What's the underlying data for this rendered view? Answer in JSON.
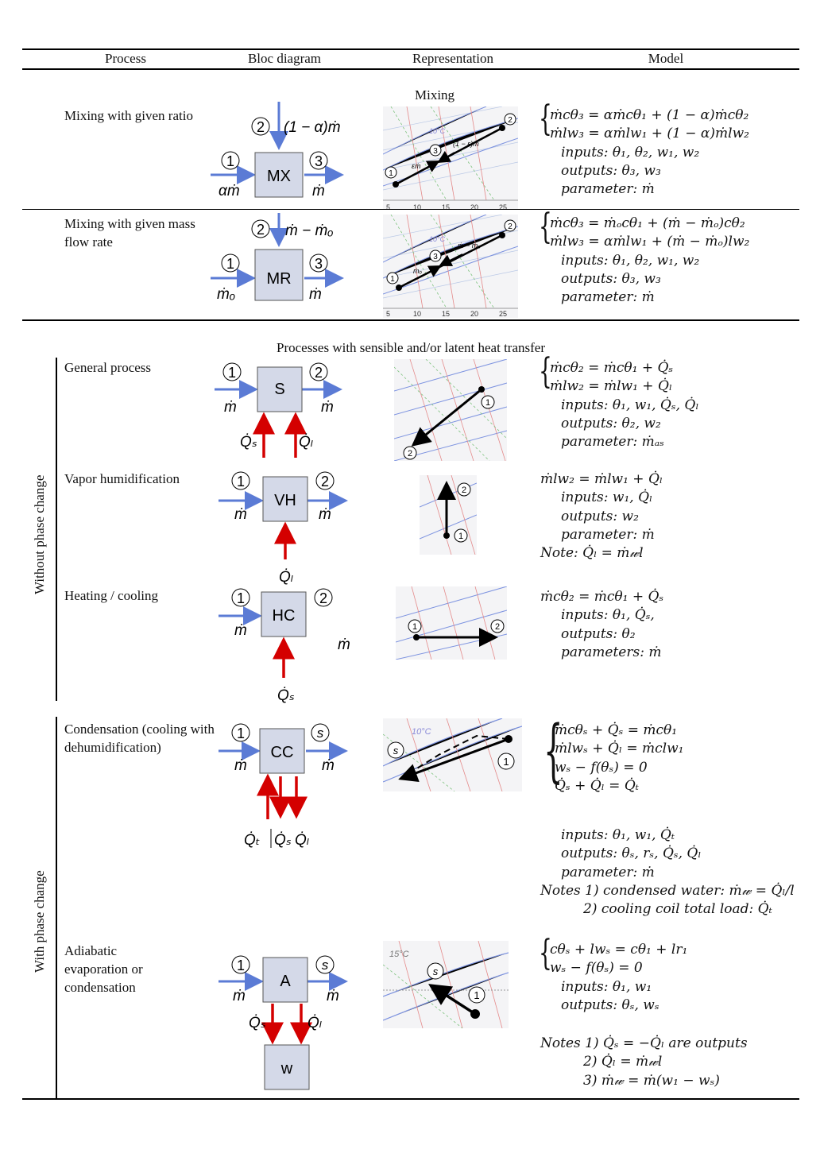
{
  "header": {
    "process": "Process",
    "bloc": "Bloc diagram",
    "representation": "Representation",
    "model": "Model"
  },
  "mixing_title": "Mixing",
  "sensible_title": "Processes with sensible and/or latent heat transfer",
  "groups": {
    "without": "Without phase change",
    "with": "With phase change"
  },
  "rows": {
    "mx": {
      "process": "Mixing with given ratio",
      "block": "MX",
      "in1": "1",
      "in2": "2",
      "out": "3",
      "flow1": "αṁ",
      "flow2": "(1 − α)ṁ",
      "flow_out": "ṁ",
      "chart_labels": {
        "p1": "1",
        "p2": "2",
        "p3": "3",
        "seg1": "εṁ",
        "seg2": "(1 − ε)ṁ",
        "iso": "10°C"
      },
      "chart_ticks": [
        "5",
        "10",
        "15",
        "20",
        "25"
      ],
      "model": [
        "ṁcθ₃ = αṁcθ₁ + (1 − α)ṁcθ₂",
        "ṁlw₃ = αṁlw₁ + (1 − α)ṁlw₂"
      ],
      "inputs": "inputs: θ₁, θ₂, w₁, w₂",
      "outputs": "outputs: θ₃, w₃",
      "parameter": "parameter: ṁ"
    },
    "mr": {
      "process": "Mixing with given mass flow rate",
      "block": "MR",
      "in1": "1",
      "in2": "2",
      "out": "3",
      "flow1": "ṁₒ",
      "flow2": "ṁ − ṁₒ",
      "flow_out": "ṁ",
      "chart_labels": {
        "p1": "1",
        "p2": "2",
        "p3": "3",
        "seg1": "ṁₒ",
        "seg2": "ṁ − ṁₒ",
        "iso": "10°C"
      },
      "chart_ticks": [
        "5",
        "10",
        "15",
        "20",
        "25"
      ],
      "model": [
        "ṁcθ₃ = ṁₒcθ₁ + (ṁ − ṁₒ)cθ₂",
        "ṁlw₃ = αṁlw₁ + (ṁ − ṁₒ)lw₂"
      ],
      "inputs": "inputs: θ₁, θ₂, w₁, w₂",
      "outputs": "outputs: θ₃, w₃",
      "parameter": "parameter: ṁ"
    },
    "s": {
      "process": "General process",
      "block": "S",
      "in": "1",
      "out": "2",
      "flow_in": "ṁ",
      "flow_out": "ṁ",
      "q1": "Q̇ₛ",
      "q2": "Q̇ₗ",
      "chart_labels": {
        "p1": "1",
        "p2": "2"
      },
      "model": [
        "ṁcθ₂ = ṁcθ₁ + Q̇ₛ",
        "ṁlw₂ = ṁlw₁ + Q̇ₗ"
      ],
      "inputs": "inputs: θ₁, w₁, Q̇ₛ, Q̇ₗ",
      "outputs": "outputs: θ₂, w₂",
      "parameter": "parameter: ṁₐₛ"
    },
    "vh": {
      "process": "Vapor humidification",
      "block": "VH",
      "in": "1",
      "out": "2",
      "flow_in": "ṁ",
      "flow_out": "ṁ",
      "q1": "Q̇ₗ",
      "chart_labels": {
        "p1": "1",
        "p2": "2"
      },
      "model": [
        "ṁlw₂ = ṁlw₁ + Q̇ₗ"
      ],
      "inputs": "inputs: w₁, Q̇ₗ",
      "outputs": "outputs: w₂",
      "parameter": "parameter: ṁ",
      "note": "Note: Q̇ₗ = ṁ𝓌l"
    },
    "hc": {
      "process": "Heating / cooling",
      "block": "HC",
      "in": "1",
      "out": "2",
      "flow_in": "ṁ",
      "flow_out": "ṁ",
      "q1": "Q̇ₛ",
      "chart_labels": {
        "p1": "1",
        "p2": "2"
      },
      "model": [
        "ṁcθ₂ = ṁcθ₁ + Q̇ₛ"
      ],
      "inputs": "inputs: θ₁, Q̇ₛ,",
      "outputs": "outputs: θ₂",
      "parameter": "parameters: ṁ"
    },
    "cc": {
      "process": "Condensation (cooling with dehumidification)",
      "block": "CC",
      "in": "1",
      "out": "s",
      "flow_in": "ṁ",
      "flow_out": "ṁ",
      "q1": "Q̇ₜ",
      "q2": "Q̇ₛ",
      "q3": "Q̇ₗ",
      "chart_labels": {
        "p1": "1",
        "ps": "s",
        "iso": "10°C"
      },
      "model": [
        "ṁcθₛ + Q̇ₛ = ṁcθ₁",
        "ṁlwₛ + Q̇ₗ = ṁclw₁",
        "wₛ − f(θₛ) = 0",
        "Q̇ₛ + Q̇ₗ = Q̇ₜ"
      ],
      "inputs": "inputs: θ₁, w₁, Q̇ₜ",
      "outputs": "outputs: θₛ, rₛ, Q̇ₛ, Q̇ₗ",
      "parameter": "parameter: ṁ",
      "notes": [
        "Notes 1) condensed water: ṁ𝓌 = Q̇ₗ/l",
        "2) cooling coil total load: Q̇ₜ"
      ]
    },
    "a": {
      "process": "Adiabatic evaporation or condensation",
      "block": "A",
      "block2": "w",
      "in": "1",
      "out": "s",
      "flow_in": "ṁ",
      "flow_out": "ṁ",
      "q1": "Q̇ₛ",
      "q2": "Q̇ₗ",
      "chart_labels": {
        "p1": "1",
        "ps": "s",
        "iso": "15°C"
      },
      "model": [
        "cθₛ + lwₛ = cθ₁ + lr₁",
        "wₛ − f(θₛ) = 0"
      ],
      "inputs": "inputs: θ₁, w₁",
      "outputs": "outputs: θₛ, wₛ",
      "notes": [
        "Notes 1) Q̇ₛ = −Q̇ₗ are outputs",
        "2) Q̇ₗ = ṁ𝓌l",
        "3) ṁ𝓌 = ṁ(w₁ − wₛ)"
      ]
    }
  },
  "colors": {
    "flow_arrow": "#5b7bd5",
    "heat_arrow": "#d40000",
    "block_fill": "#d4d9e8"
  }
}
